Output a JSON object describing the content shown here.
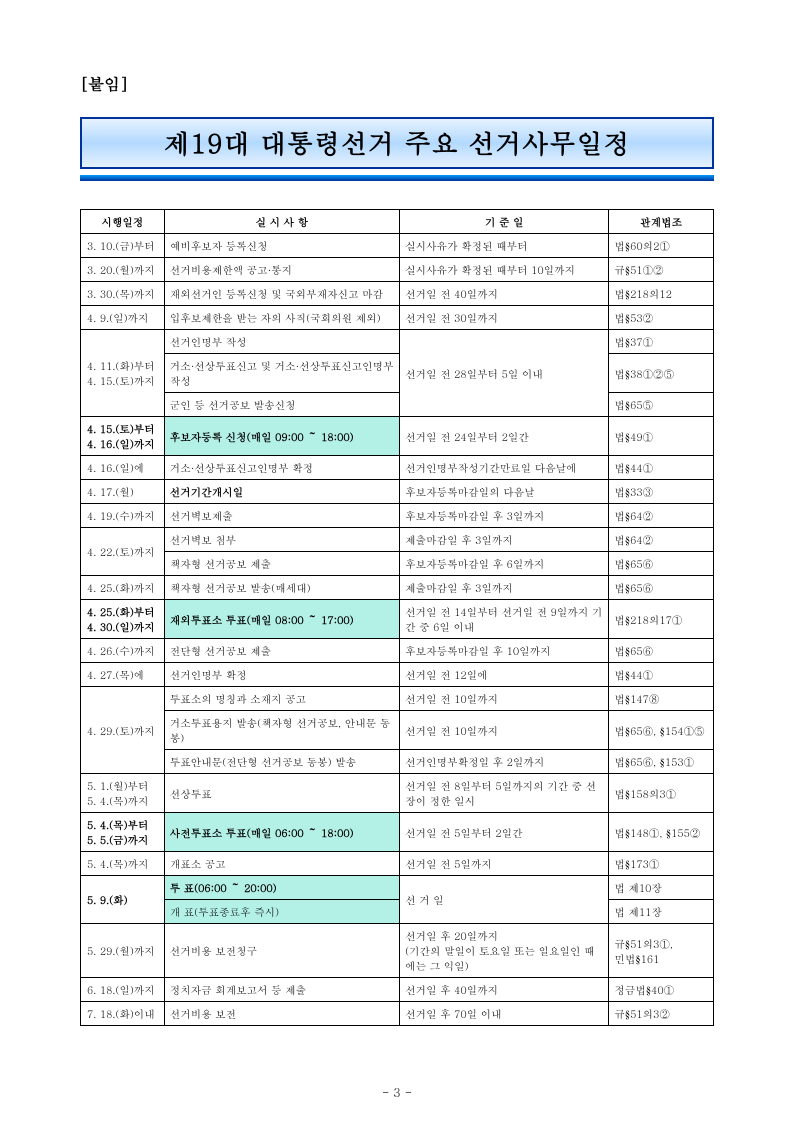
{
  "attach_label": "[붙임]",
  "banner_title": "제19대 대통령선거 주요 선거사무일정",
  "headers": {
    "c1": "시행일정",
    "c2": "실 시 사 항",
    "c3": "기 준 일",
    "c4": "관계법조"
  },
  "rows": [
    {
      "d": "3. 10.(금)부터",
      "a": "예비후보자 등록신청",
      "b": "실시사유가 확정된 때부터",
      "l": "법§60의2①"
    },
    {
      "d": "3. 20.(월)까지",
      "a": "선거비용제한액 공고·통지",
      "b": "실시사유가 확정된 때부터 10일까지",
      "l": "규§51①②"
    },
    {
      "d": "3. 30.(목)까지",
      "a": "재외선거인 등록신청 및 국외부재자신고 마감",
      "b": "선거일 전 40일까지",
      "l": "법§218의12"
    },
    {
      "d": "4. 9.(일)까지",
      "a": "입후보제한을 받는 자의 사직(국회의원 제외)",
      "b": "선거일 전 30일까지",
      "l": "법§53②"
    },
    {
      "d": "4. 11.(화)부터\n4. 15.(토)까지",
      "rowspan": 3,
      "a": "선거인명부 작성",
      "b": "선거일 전 28일부터 5일 이내",
      "brs": 3,
      "l": "법§37①"
    },
    {
      "a": "거소·선상투표신고 및 거소·선상투표신고인명부 작성",
      "l": "법§38①②⑤"
    },
    {
      "a": "군인 등 선거공보 발송신청",
      "l": "법§65⑤"
    },
    {
      "d": "4. 15.(토)부터\n4. 16.(일)까지",
      "bold": true,
      "a": "후보자등록 신청(매일 09:00 ～ 18:00)",
      "hl": true,
      "b": "선거일 전 24일부터 2일간",
      "l": "법§49①"
    },
    {
      "d": "4. 16.(일)에",
      "a": "거소·선상투표신고인명부 확정",
      "b": "선거인명부작성기간만료일 다음날에",
      "l": "법§44①"
    },
    {
      "d": "4. 17.(월)",
      "a": "선거기간개시일",
      "abold": true,
      "b": "후보자등록마감일의 다음날",
      "l": "법§33③"
    },
    {
      "d": "4. 19.(수)까지",
      "a": "선거벽보제출",
      "b": "후보자등록마감일 후 3일까지",
      "l": "법§64②"
    },
    {
      "d": "4. 22.(토)까지",
      "rowspan": 2,
      "a": "선거벽보 첨부",
      "b": "제출마감일 후 3일까지",
      "l": "법§64②"
    },
    {
      "a": "책자형 선거공보 제출",
      "b": "후보자등록마감일 후 6일까지",
      "l": "법§65⑥"
    },
    {
      "d": "4. 25.(화)까지",
      "a": "책자형 선거공보 발송(매세대)",
      "b": "제출마감일 후 3일까지",
      "l": "법§65⑥"
    },
    {
      "d": "4. 25.(화)부터\n4. 30.(일)까지",
      "bold": true,
      "a": "재외투표소 투표(매일 08:00 ～ 17:00)",
      "hl": true,
      "b": "선거일 전 14일부터 선거일 전 9일까지 기간 중 6일 이내",
      "l": "법§218의17①"
    },
    {
      "d": "4. 26.(수)까지",
      "a": "전단형 선거공보 제출",
      "b": "후보자등록마감일 후 10일까지",
      "l": "법§65⑥"
    },
    {
      "d": "4. 27.(목)에",
      "a": "선거인명부 확정",
      "b": "선거일 전 12일에",
      "l": "법§44①"
    },
    {
      "d": "4. 29.(토)까지",
      "rowspan": 3,
      "a": "투표소의 명칭과 소재지 공고",
      "b": "선거일 전 10일까지",
      "l": "법§147⑧"
    },
    {
      "a": "거소투표용지 발송(책자형 선거공보, 안내문 동봉)",
      "b": "선거일 전 10일까지",
      "l": "법§65⑥, §154①⑤"
    },
    {
      "a": "투표안내문(전단형 선거공보 동봉) 발송",
      "b": "선거인명부확정일 후 2일까지",
      "l": "법§65⑥, §153①"
    },
    {
      "d": "5. 1.(월)부터\n5. 4.(목)까지",
      "a": "선상투표",
      "b": "선거일 전 8일부터 5일까지의 기간 중 선장이 정한 일시",
      "l": "법§158의3①"
    },
    {
      "d": "5. 4.(목)부터\n5. 5.(금)까지",
      "bold": true,
      "a": "사전투표소 투표(매일 06:00 ～ 18:00)",
      "hl": true,
      "b": "선거일 전 5일부터 2일간",
      "l": "법§148①, §155②"
    },
    {
      "d": "5. 4.(목)까지",
      "a": "개표소 공고",
      "b": "선거일 전 5일까지",
      "l": "법§173①"
    },
    {
      "d": "5. 9.(화)",
      "bold": true,
      "rowspan": 2,
      "a": "투      표(06:00 ～ 20:00)",
      "hl": true,
      "b": "선 거 일",
      "brs": 2,
      "l": "법 제10장"
    },
    {
      "a": "개      표(투표종료후 즉시)",
      "hl": true,
      "l": "법 제11장"
    },
    {
      "d": "5. 29.(월)까지",
      "a": "선거비용 보전청구",
      "b": "선거일 후 20일까지\n(기간의 말일이 토요일 또는 일요일인 때에는 그 익일)",
      "l": "규§51의3①,\n민법§161"
    },
    {
      "d": "6. 18.(일)까지",
      "a": "정치자금 회계보고서 등 제출",
      "b": "선거일 후 40일까지",
      "l": "정금법§40①"
    },
    {
      "d": "7. 18.(화)이내",
      "a": "선거비용 보전",
      "b": "선거일 후 70일 이내",
      "l": "규§51의3②"
    }
  ],
  "page_number": "- 3 -",
  "colors": {
    "highlight": "#b3f0e6",
    "banner_border": "#003399"
  }
}
